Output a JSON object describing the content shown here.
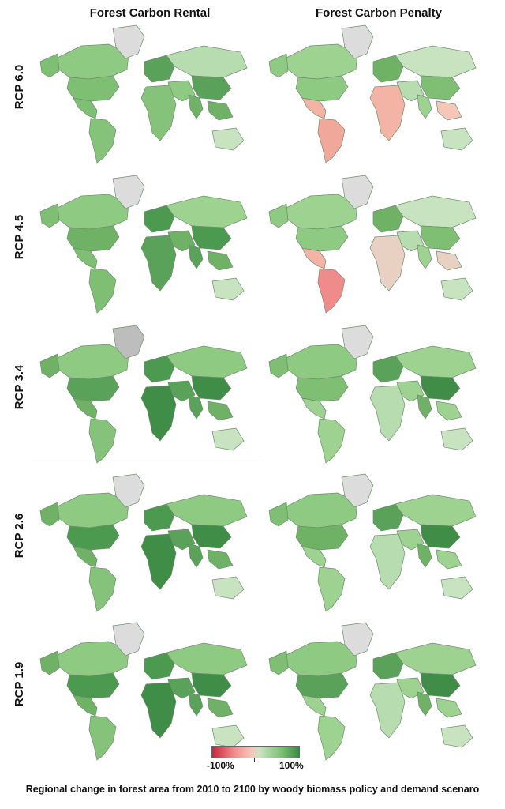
{
  "columns": [
    "Forest Carbon Rental",
    "Forest Carbon Penalty"
  ],
  "rows": [
    "RCP 6.0",
    "RCP 4.5",
    "RCP 3.4",
    "RCP 2.6",
    "RCP 1.9"
  ],
  "legend": {
    "min_label": "-100%",
    "max_label": "100%",
    "colors": [
      "#c8243a",
      "#f08b8b",
      "#f6c6b8",
      "#c7e3c0",
      "#7cbf74",
      "#3a8a43"
    ]
  },
  "caption": "Regional change in forest area from 2010 to 2100 by woody biomass policy and demand scenaro",
  "colors": {
    "greenland": "#dcdcdc",
    "greenland_dark": "#bdbdbd",
    "outline": "#6f8f6f"
  },
  "panels": [
    [
      {
        "na": "#7fbf73",
        "ca": "#8fca82",
        "us": "#7fbf73",
        "mx": "#7fbf73",
        "sa": "#86c37a",
        "eu": "#5aa25a",
        "af": "#86c37a",
        "me": "#8fca82",
        "ru": "#b7dcb0",
        "cn": "#5aa25a",
        "in": "#6fb266",
        "se": "#6fb266",
        "au": "#c7e3c0",
        "gl": "#dcdcdc"
      },
      {
        "na": "#8fca82",
        "ca": "#9ed290",
        "us": "#8fca82",
        "mx": "#f3b4a6",
        "sa": "#f0a89a",
        "eu": "#6fb266",
        "af": "#f3b4a6",
        "me": "#b7dcb0",
        "ru": "#c7e3c0",
        "cn": "#7fbf73",
        "in": "#9ed290",
        "se": "#f6c6b8",
        "au": "#c7e3c0",
        "gl": "#dcdcdc"
      }
    ],
    [
      {
        "na": "#7fbf73",
        "ca": "#8fca82",
        "us": "#6fb266",
        "mx": "#7fbf73",
        "sa": "#7fbf73",
        "eu": "#4c9a4f",
        "af": "#5aa25a",
        "me": "#6fb266",
        "ru": "#9ed290",
        "cn": "#4c9a4f",
        "in": "#5aa25a",
        "se": "#6fb266",
        "au": "#c7e3c0",
        "gl": "#dcdcdc"
      },
      {
        "na": "#8fca82",
        "ca": "#9ed290",
        "us": "#8fca82",
        "mx": "#f3b4a6",
        "sa": "#f08b8b",
        "eu": "#6fb266",
        "af": "#e8d0c2",
        "me": "#b7dcb0",
        "ru": "#c7e3c0",
        "cn": "#7fbf73",
        "in": "#9ed290",
        "se": "#e8d0c2",
        "au": "#c7e3c0",
        "gl": "#dcdcdc"
      }
    ],
    [
      {
        "na": "#6fb266",
        "ca": "#8fca82",
        "us": "#5aa25a",
        "mx": "#6fb266",
        "sa": "#86c37a",
        "eu": "#4c9a4f",
        "af": "#3f8d46",
        "me": "#5aa25a",
        "ru": "#8fca82",
        "cn": "#3f8d46",
        "in": "#5aa25a",
        "se": "#6fb266",
        "au": "#c7e3c0",
        "gl": "#bdbdbd"
      },
      {
        "na": "#7fbf73",
        "ca": "#8fca82",
        "us": "#7fbf73",
        "mx": "#9ed290",
        "sa": "#9ed290",
        "eu": "#5aa25a",
        "af": "#b7dcb0",
        "me": "#9ed290",
        "ru": "#9ed290",
        "cn": "#3f8d46",
        "in": "#6fb266",
        "se": "#9ed290",
        "au": "#c7e3c0",
        "gl": "#dcdcdc"
      }
    ],
    [
      {
        "na": "#6fb266",
        "ca": "#8fca82",
        "us": "#4c9a4f",
        "mx": "#6fb266",
        "sa": "#86c37a",
        "eu": "#4c9a4f",
        "af": "#3f8d46",
        "me": "#5aa25a",
        "ru": "#8fca82",
        "cn": "#3f8d46",
        "in": "#5aa25a",
        "se": "#6fb266",
        "au": "#c7e3c0",
        "gl": "#dcdcdc"
      },
      {
        "na": "#7fbf73",
        "ca": "#8fca82",
        "us": "#6fb266",
        "mx": "#9ed290",
        "sa": "#9ed290",
        "eu": "#5aa25a",
        "af": "#b7dcb0",
        "me": "#9ed290",
        "ru": "#9ed290",
        "cn": "#3f8d46",
        "in": "#6fb266",
        "se": "#9ed290",
        "au": "#c7e3c0",
        "gl": "#dcdcdc"
      }
    ],
    [
      {
        "na": "#6fb266",
        "ca": "#8fca82",
        "us": "#4c9a4f",
        "mx": "#6fb266",
        "sa": "#86c37a",
        "eu": "#4c9a4f",
        "af": "#3f8d46",
        "me": "#5aa25a",
        "ru": "#8fca82",
        "cn": "#3f8d46",
        "in": "#5aa25a",
        "se": "#6fb266",
        "au": "#c7e3c0",
        "gl": "#dcdcdc"
      },
      {
        "na": "#7fbf73",
        "ca": "#8fca82",
        "us": "#5aa25a",
        "mx": "#9ed290",
        "sa": "#9ed290",
        "eu": "#5aa25a",
        "af": "#b7dcb0",
        "me": "#9ed290",
        "ru": "#9ed290",
        "cn": "#3f8d46",
        "in": "#6fb266",
        "se": "#9ed290",
        "au": "#c7e3c0",
        "gl": "#dcdcdc"
      }
    ]
  ]
}
